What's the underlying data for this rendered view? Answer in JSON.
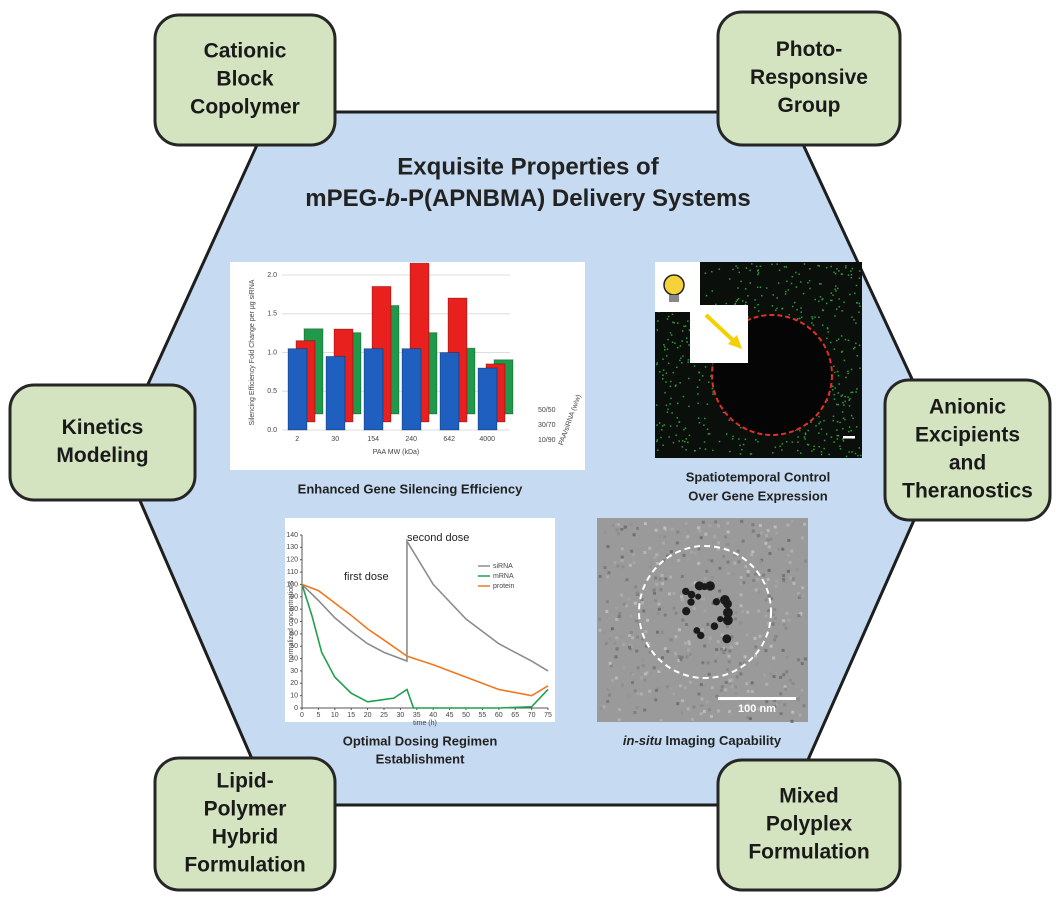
{
  "title": {
    "line1": "Exquisite Properties of",
    "line2": [
      "mPEG-",
      "b",
      "-P(APNBMA) Delivery Systems"
    ]
  },
  "boxes": [
    {
      "lines": [
        "Cationic",
        "Block",
        "Copolymer"
      ]
    },
    {
      "lines": [
        "Photo-",
        "Responsive",
        "Group"
      ]
    },
    {
      "lines": [
        "Kinetics",
        "Modeling"
      ]
    },
    {
      "lines": [
        "Anionic",
        "Excipients",
        "and",
        "Theranostics"
      ]
    },
    {
      "lines": [
        "Lipid-",
        "Polymer",
        "Hybrid",
        "Formulation"
      ]
    },
    {
      "lines": [
        "Mixed",
        "Polyplex",
        "Formulation"
      ]
    }
  ],
  "bar_chart": {
    "type": "bar",
    "caption": "Enhanced Gene Silencing Efficiency",
    "y_label": "Silencing Efficiency Fold Change per μg siRNA",
    "x_label": "PAA MW (kDa)",
    "z_label": "PAA/siRNA (w/w)",
    "categories": [
      "2",
      "30",
      "154",
      "240",
      "642",
      "4000"
    ],
    "series": [
      {
        "name": "10/90",
        "color": "#1f5fbf",
        "values": [
          1.05,
          0.95,
          1.05,
          1.05,
          1.0,
          0.8
        ]
      },
      {
        "name": "30/70",
        "color": "#e8201e",
        "values": [
          1.05,
          1.2,
          1.75,
          2.05,
          1.6,
          0.75
        ]
      },
      {
        "name": "50/50",
        "color": "#1e9a4a",
        "values": [
          1.1,
          1.05,
          1.4,
          1.05,
          0.85,
          0.7
        ]
      }
    ],
    "ylim": [
      0,
      2.0
    ],
    "yticks": [
      {
        "value": 0,
        "label": "0.0"
      },
      {
        "value": 0.5,
        "label": "0.5"
      },
      {
        "value": 1,
        "label": "1.0"
      },
      {
        "value": 1.5,
        "label": "1.5"
      },
      {
        "value": 2,
        "label": "2.0"
      }
    ]
  },
  "fluorescence": {
    "caption": [
      "Spatiotemporal Control",
      "Over Gene Expression"
    ]
  },
  "line_chart": {
    "type": "line",
    "caption": [
      "Optimal Dosing Regimen",
      "Establishment"
    ],
    "y_label": "normalized concentrations",
    "x_label": "time (h)",
    "annotations": [
      "first dose",
      "second dose"
    ],
    "series": [
      {
        "name": "siRNA",
        "color": "#8c8c8c",
        "x": [
          0,
          5,
          10,
          15,
          20,
          25,
          32,
          32,
          40,
          50,
          60,
          70,
          75
        ],
        "values": [
          100,
          87,
          73,
          62,
          52,
          45,
          38,
          135,
          100,
          72,
          52,
          38,
          30
        ]
      },
      {
        "name": "mRNA",
        "color": "#1ea050",
        "x": [
          0,
          3,
          6,
          10,
          15,
          20,
          28,
          32,
          34,
          40,
          50,
          60,
          70,
          75
        ],
        "values": [
          100,
          75,
          45,
          25,
          12,
          5,
          8,
          15,
          0,
          0,
          0,
          0,
          1,
          15
        ]
      },
      {
        "name": "protein",
        "color": "#f07820",
        "x": [
          0,
          5,
          10,
          15,
          20,
          25,
          32,
          40,
          50,
          60,
          70,
          75
        ],
        "values": [
          100,
          95,
          85,
          75,
          64,
          55,
          42,
          35,
          25,
          15,
          10,
          18
        ]
      }
    ],
    "xlim": [
      0,
      75
    ],
    "xticks": [
      0,
      5,
      10,
      15,
      20,
      25,
      30,
      35,
      40,
      45,
      50,
      55,
      60,
      65,
      70,
      75
    ],
    "ylim": [
      0,
      140
    ],
    "yticks": [
      0,
      10,
      20,
      30,
      40,
      50,
      60,
      70,
      80,
      90,
      100,
      110,
      120,
      130,
      140
    ]
  },
  "tem": {
    "caption": [
      "in-situ",
      " Imaging Capability"
    ],
    "scale_label": "100 nm"
  }
}
